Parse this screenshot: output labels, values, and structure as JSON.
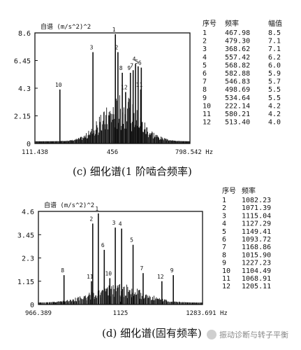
{
  "chart_data": [
    {
      "type": "bar",
      "panel_caption": "(c)   细化谱(1 阶啮合频率)",
      "ylabel": "自谱 (m/s^2)^2",
      "yticks": [
        "8.6",
        "6.45",
        "4.3",
        "2.15",
        "0"
      ],
      "ylim": [
        0,
        8.6
      ],
      "xtick_labels": [
        "111.438",
        "456",
        "798.542 Hz"
      ],
      "xlim": [
        111.438,
        798.542
      ],
      "peaks": [
        {
          "label": "1",
          "freq": 467.98,
          "amp": 8.5
        },
        {
          "label": "2",
          "freq": 479.3,
          "amp": 7.1
        },
        {
          "label": "3",
          "freq": 368.62,
          "amp": 7.1
        },
        {
          "label": "4",
          "freq": 557.42,
          "amp": 6.2
        },
        {
          "label": "5",
          "freq": 568.82,
          "amp": 6.0
        },
        {
          "label": "6",
          "freq": 582.88,
          "amp": 5.9
        },
        {
          "label": "7",
          "freq": 546.83,
          "amp": 5.7
        },
        {
          "label": "8",
          "freq": 498.69,
          "amp": 5.5
        },
        {
          "label": "9",
          "freq": 534.64,
          "amp": 5.5
        },
        {
          "label": "10",
          "freq": 222.14,
          "amp": 4.2
        },
        {
          "label": "11",
          "freq": 580.21,
          "amp": 4.2
        },
        {
          "label": "12",
          "freq": 513.4,
          "amp": 4.0
        }
      ],
      "table": {
        "headers": [
          "序号",
          "频率",
          "幅值"
        ],
        "rows": [
          [
            "1",
            "467.98",
            "8.5"
          ],
          [
            "2",
            "479.30",
            "7.1"
          ],
          [
            "3",
            "368.62",
            "7.1"
          ],
          [
            "4",
            "557.42",
            "6.2"
          ],
          [
            "5",
            "568.82",
            "6.0"
          ],
          [
            "6",
            "582.88",
            "5.9"
          ],
          [
            "7",
            "546.83",
            "5.7"
          ],
          [
            "8",
            "498.69",
            "5.5"
          ],
          [
            "9",
            "534.64",
            "5.5"
          ],
          [
            "10",
            "222.14",
            "4.2"
          ],
          [
            "11",
            "580.21",
            "4.2"
          ],
          [
            "12",
            "513.40",
            "4.0"
          ]
        ]
      }
    },
    {
      "type": "bar",
      "panel_caption": "(d)   细化谱(固有频率)",
      "ylabel": "自谱 (m/s^2)^2",
      "yticks": [
        "4.6",
        "3.45",
        "2.3",
        "1.15",
        "0"
      ],
      "ylim": [
        0,
        4.6
      ],
      "xtick_labels": [
        "966.389",
        "1125",
        "1283.691 Hz"
      ],
      "xlim": [
        966.389,
        1283.691
      ],
      "peaks": [
        {
          "label": "1",
          "freq": 1082.23,
          "amp": 4.5
        },
        {
          "label": "2",
          "freq": 1071.39,
          "amp": 4.0
        },
        {
          "label": "3",
          "freq": 1115.04,
          "amp": 3.8
        },
        {
          "label": "4",
          "freq": 1127.29,
          "amp": 3.75
        },
        {
          "label": "5",
          "freq": 1149.41,
          "amp": 2.95
        },
        {
          "label": "6",
          "freq": 1093.72,
          "amp": 2.7
        },
        {
          "label": "7",
          "freq": 1168.86,
          "amp": 1.55
        },
        {
          "label": "8",
          "freq": 1015.9,
          "amp": 1.45
        },
        {
          "label": "9",
          "freq": 1227.23,
          "amp": 1.45
        },
        {
          "label": "10",
          "freq": 1104.49,
          "amp": 1.3
        },
        {
          "label": "11",
          "freq": 1068.91,
          "amp": 1.15
        },
        {
          "label": "12",
          "freq": 1205.11,
          "amp": 1.15
        }
      ],
      "table": {
        "headers": [
          "序号",
          "频率"
        ],
        "rows": [
          [
            "1",
            "1082.23"
          ],
          [
            "2",
            "1071.39"
          ],
          [
            "3",
            "1115.04"
          ],
          [
            "4",
            "1127.29"
          ],
          [
            "5",
            "1149.41"
          ],
          [
            "6",
            "1093.72"
          ],
          [
            "7",
            "1168.86"
          ],
          [
            "8",
            "1015.90"
          ],
          [
            "9",
            "1227.23"
          ],
          [
            "10",
            "1104.49"
          ],
          [
            "11",
            "1068.91"
          ],
          [
            "12",
            "1205.11"
          ]
        ]
      }
    }
  ],
  "watermark": "振动诊断与转子平衡",
  "colors": {
    "ink": "#111111",
    "grid": "#bbbbbb",
    "background": "#ffffff"
  }
}
